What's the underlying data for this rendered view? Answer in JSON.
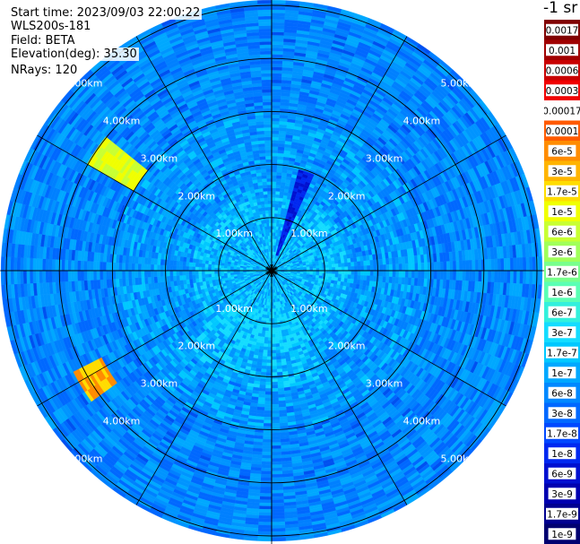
{
  "header": {
    "start_time": "Start time: 2023/09/03 22:00:22",
    "instrument": "WLS200s-181",
    "field": "Field: BETA",
    "elevation": "Elevation(deg): 35.30",
    "nrays": "NRays: 120"
  },
  "colorbar": {
    "unit": "-1 sr",
    "labels": [
      "0.0017",
      "0.001",
      "0.0006",
      "0.0003",
      "0.00017",
      "0.0001",
      "6e-5",
      "3e-5",
      "1.7e-5",
      "1e-5",
      "6e-6",
      "3e-6",
      "1.7e-6",
      "1e-6",
      "6e-7",
      "3e-7",
      "1.7e-7",
      "1e-7",
      "6e-8",
      "3e-8",
      "1.7e-8",
      "1e-8",
      "6e-9",
      "3e-9",
      "1.7e-9",
      "1e-9"
    ],
    "colors": [
      "#800000",
      "#a00000",
      "#c80000",
      "#f00000",
      "#ffffff",
      "#ff5a00",
      "#ff8c00",
      "#ffb400",
      "#ffdc00",
      "#f0ff00",
      "#c8ff32",
      "#a0ff5a",
      "#78ff8c",
      "#5affb4",
      "#32f0dc",
      "#14dcff",
      "#00c8ff",
      "#00a8ff",
      "#0088ff",
      "#0068ff",
      "#0048ff",
      "#0028f0",
      "#0010d0",
      "#0000b0",
      "#000090",
      "#000070"
    ]
  },
  "chart_data": {
    "type": "heatmap",
    "projection": "polar (PPI scan)",
    "field": "BETA",
    "elevation_deg": 35.3,
    "n_rays": 120,
    "range_ring_labels": [
      "1.00km",
      "2.00km",
      "3.00km",
      "4.00km",
      "5.00km"
    ],
    "range_rings_km": [
      1,
      2,
      3,
      4,
      5
    ],
    "max_range_km": 5.1,
    "color_scale": "log",
    "value_range": [
      1e-09,
      0.0017
    ],
    "features": [
      {
        "description": "enhanced backscatter patch",
        "azimuth_deg": 305,
        "range_km": [
          3.0,
          4.0
        ],
        "value_approx": 1e-05
      },
      {
        "description": "enhanced backscatter patch",
        "azimuth_deg": 238,
        "range_km": [
          3.6,
          4.2
        ],
        "value_approx": 6e-05
      },
      {
        "description": "weak signal sector",
        "azimuth_deg": 20,
        "range_km": [
          0.3,
          2.0
        ],
        "value_approx": 1e-08
      }
    ]
  }
}
